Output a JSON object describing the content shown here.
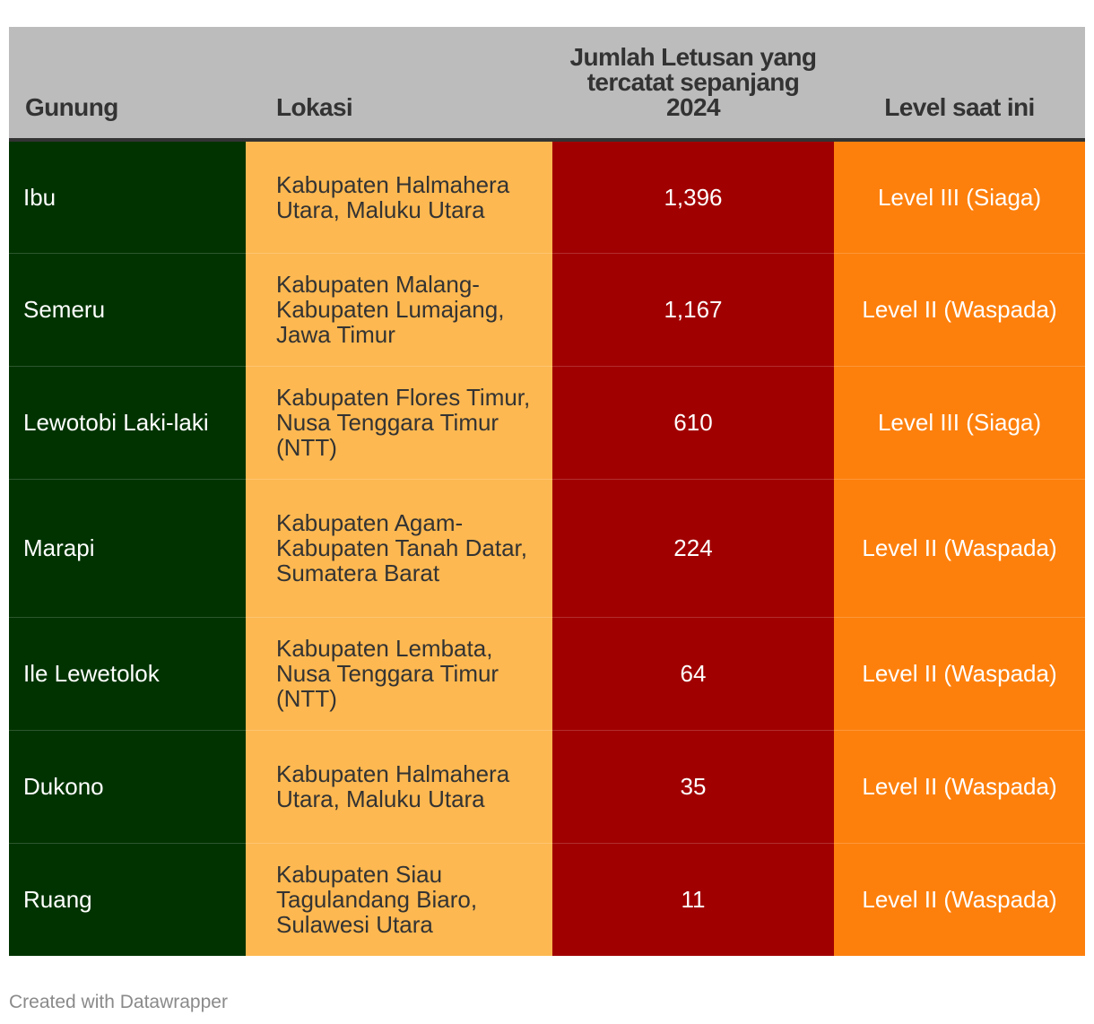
{
  "colors": {
    "header_bg": "#bcbcbc",
    "gunung_bg": "#003300",
    "lokasi_bg": "#fdb851",
    "jumlah_bg": "#a10000",
    "level_bg": "#fd800d"
  },
  "chart_data": {
    "type": "table",
    "columns": [
      "Gunung",
      "Lokasi",
      "Jumlah Letusan yang tercatat sepanjang 2024",
      "Level saat ini"
    ],
    "rows": [
      {
        "gunung": "Ibu",
        "lokasi": "Kabupaten Halmahera Utara, Maluku Utara",
        "jumlah": "1,396",
        "level": "Level III (Siaga)"
      },
      {
        "gunung": "Semeru",
        "lokasi": "Kabupaten Malang-Kabupaten Lumajang, Jawa Timur",
        "jumlah": "1,167",
        "level": "Level II (Waspada)"
      },
      {
        "gunung": "Lewotobi Laki-laki",
        "lokasi": "Kabupaten Flores Timur, Nusa Tenggara Timur (NTT)",
        "jumlah": "610",
        "level": "Level III (Siaga)"
      },
      {
        "gunung": "Marapi",
        "lokasi": "Kabupaten Agam-Kabupaten Tanah Datar, Sumatera Barat",
        "jumlah": "224",
        "level": "Level II (Waspada)"
      },
      {
        "gunung": "Ile Lewetolok",
        "lokasi": "Kabupaten Lembata, Nusa Tenggara Timur (NTT)",
        "jumlah": "64",
        "level": "Level II (Waspada)"
      },
      {
        "gunung": "Dukono",
        "lokasi": "Kabupaten Halmahera Utara, Maluku Utara",
        "jumlah": "35",
        "level": "Level II (Waspada)"
      },
      {
        "gunung": "Ruang",
        "lokasi": "Kabupaten Siau Tagulandang Biaro, Sulawesi Utara",
        "jumlah": "11",
        "level": "Level II (Waspada)"
      }
    ]
  },
  "footer": "Created with Datawrapper"
}
